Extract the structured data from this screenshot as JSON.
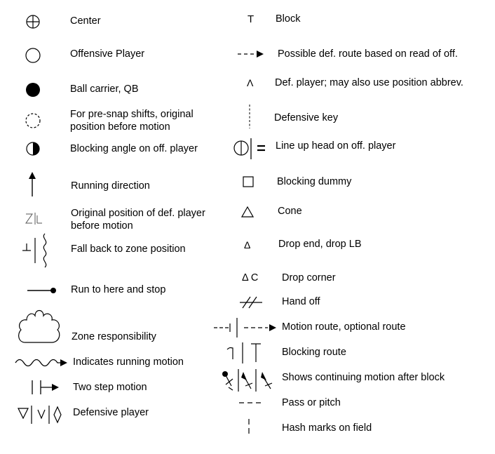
{
  "legend": {
    "left": [
      {
        "icon": "center-icon",
        "label": "Center"
      },
      {
        "icon": "offensive-player-icon",
        "label": "Offensive Player"
      },
      {
        "icon": "ball-carrier-icon",
        "label": "Ball carrier, QB"
      },
      {
        "icon": "pre-snap-shift-icon",
        "label": "For pre-snap shifts, original\nposition before motion"
      },
      {
        "icon": "blocking-angle-icon",
        "label": "Blocking angle on off. player"
      },
      {
        "icon": "running-direction-arrow-icon",
        "label": "Running direction"
      },
      {
        "icon": "def-original-position-icon",
        "label": "Original position of def. player\nbefore motion"
      },
      {
        "icon": "fall-back-zone-icon",
        "label": "Fall back to zone position"
      },
      {
        "icon": "run-and-stop-icon",
        "label": "Run to here and stop"
      },
      {
        "icon": "zone-cloud-icon",
        "label": "Zone responsibility"
      },
      {
        "icon": "running-motion-wave-icon",
        "label": "Indicates running motion"
      },
      {
        "icon": "two-step-motion-icon",
        "label": "Two step motion"
      },
      {
        "icon": "defensive-player-icon",
        "label": "Defensive player"
      }
    ],
    "right": [
      {
        "icon": "block-t-icon",
        "label": "Block"
      },
      {
        "icon": "possible-route-dashed-arrow-icon",
        "label": "Possible def. route based on read of off."
      },
      {
        "icon": "def-player-caret-icon",
        "label": "Def. player; may also use position abbrev."
      },
      {
        "icon": "defensive-key-icon",
        "label": "Defensive key"
      },
      {
        "icon": "line-up-head-icon",
        "label": "Line up head on off. player"
      },
      {
        "icon": "blocking-dummy-icon",
        "label": "Blocking dummy"
      },
      {
        "icon": "cone-icon",
        "label": "Cone"
      },
      {
        "icon": "drop-end-icon",
        "label": "Drop end, drop LB"
      },
      {
        "icon": "drop-corner-icon",
        "label": "Drop corner"
      },
      {
        "icon": "hand-off-icon",
        "label": "Hand off"
      },
      {
        "icon": "motion-route-icon",
        "label": "Motion route, optional route"
      },
      {
        "icon": "blocking-route-icon",
        "label": "Blocking route"
      },
      {
        "icon": "continuing-motion-icon",
        "label": "Shows continuing motion after block"
      },
      {
        "icon": "pass-pitch-icon",
        "label": "Pass or pitch"
      },
      {
        "icon": "hash-marks-icon",
        "label": "Hash marks on field"
      }
    ],
    "glyphs": {
      "block_t": "T",
      "def_caret": "Λ",
      "equals": "=",
      "z_mark": "Z",
      "t_mark": "⊥",
      "drop_end": "Δ",
      "drop_corner": "Δ C",
      "v_mark": "V"
    }
  }
}
